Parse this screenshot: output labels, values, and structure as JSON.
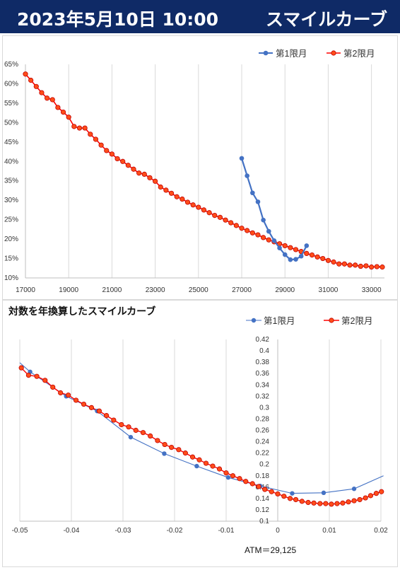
{
  "header": {
    "date": "2023年5月10日 10:00",
    "title": "スマイルカーブ"
  },
  "colors": {
    "header_bg": "#0f2a66",
    "series1": "#4472c4",
    "series2_line": "#ff0000",
    "series2_fill": "#ff4d1a"
  },
  "chart_data": [
    {
      "type": "line",
      "title": "",
      "legend": [
        "第1限月",
        "第2限月"
      ],
      "legend_position": "top-right",
      "xlim": [
        17000,
        33600
      ],
      "ylim": [
        0.1,
        0.65
      ],
      "x_ticks": [
        "17000",
        "19000",
        "21000",
        "23000",
        "25000",
        "27000",
        "29000",
        "31000",
        "33000"
      ],
      "y_ticks": [
        "10%",
        "15%",
        "20%",
        "25%",
        "30%",
        "35%",
        "40%",
        "45%",
        "50%",
        "55%",
        "60%",
        "65%"
      ],
      "grid": "vertical",
      "series": [
        {
          "name": "第1限月",
          "x": [
            27000,
            27250,
            27500,
            27750,
            28000,
            28250,
            28500,
            28750,
            29000,
            29250,
            29500,
            29750,
            30000
          ],
          "y": [
            0.408,
            0.363,
            0.319,
            0.296,
            0.249,
            0.22,
            0.196,
            0.177,
            0.16,
            0.147,
            0.148,
            0.156,
            0.183
          ]
        },
        {
          "name": "第2限月",
          "x": [
            17000,
            17250,
            17500,
            17750,
            18000,
            18250,
            18500,
            18750,
            19000,
            19250,
            19500,
            19750,
            20000,
            20250,
            20500,
            20750,
            21000,
            21250,
            21500,
            21750,
            22000,
            22250,
            22500,
            22750,
            23000,
            23250,
            23500,
            23750,
            24000,
            24250,
            24500,
            24750,
            25000,
            25250,
            25500,
            25750,
            26000,
            26250,
            26500,
            26750,
            27000,
            27250,
            27500,
            27750,
            28000,
            28250,
            28500,
            28750,
            29000,
            29250,
            29500,
            29750,
            30000,
            30250,
            30500,
            30750,
            31000,
            31250,
            31500,
            31750,
            32000,
            32250,
            32500,
            32750,
            33000,
            33250,
            33500
          ],
          "y": [
            0.625,
            0.609,
            0.593,
            0.577,
            0.563,
            0.559,
            0.539,
            0.527,
            0.514,
            0.49,
            0.486,
            0.486,
            0.47,
            0.457,
            0.442,
            0.428,
            0.419,
            0.407,
            0.4,
            0.39,
            0.38,
            0.37,
            0.367,
            0.358,
            0.349,
            0.334,
            0.326,
            0.318,
            0.309,
            0.303,
            0.295,
            0.288,
            0.282,
            0.275,
            0.268,
            0.261,
            0.256,
            0.249,
            0.242,
            0.235,
            0.228,
            0.222,
            0.216,
            0.211,
            0.204,
            0.198,
            0.193,
            0.188,
            0.183,
            0.178,
            0.173,
            0.168,
            0.163,
            0.159,
            0.154,
            0.15,
            0.145,
            0.141,
            0.136,
            0.136,
            0.133,
            0.133,
            0.13,
            0.131,
            0.128,
            0.129,
            0.128
          ]
        }
      ]
    },
    {
      "type": "line",
      "title": "対数を年換算したスマイルカーブ",
      "legend": [
        "第1限月",
        "第2限月"
      ],
      "legend_position": "top-right",
      "xlim": [
        -0.05,
        0.02
      ],
      "ylim": [
        0.1,
        0.42
      ],
      "x_ticks": [
        "-0.05",
        "-0.04",
        "-0.03",
        "-0.02",
        "-0.01",
        "0",
        "0.01",
        "0.02"
      ],
      "y_ticks": [
        "0.1",
        "0.12",
        "0.14",
        "0.16",
        "0.18",
        "0.2",
        "0.22",
        "0.24",
        "0.26",
        "0.28",
        "0.3",
        "0.32",
        "0.34",
        "0.36",
        "0.38",
        "0.4",
        "0.42"
      ],
      "grid": "vertical",
      "annotation": "ATM＝29,125",
      "series": [
        {
          "name": "第1限月",
          "x": [
            -0.0515,
            -0.048,
            -0.041,
            -0.035,
            -0.0285,
            -0.022,
            -0.0157,
            -0.0096,
            -0.0034,
            0.0028,
            0.0089,
            0.0148,
            0.0205
          ],
          "y": [
            0.379,
            0.363,
            0.32,
            0.294,
            0.248,
            0.219,
            0.197,
            0.177,
            0.162,
            0.149,
            0.15,
            0.157,
            0.18
          ]
        },
        {
          "name": "第2限月",
          "x": [
            -0.0497,
            -0.0483,
            -0.0467,
            -0.0451,
            -0.0436,
            -0.0421,
            -0.0406,
            -0.0391,
            -0.0376,
            -0.0361,
            -0.0346,
            -0.0332,
            -0.0318,
            -0.0303,
            -0.0289,
            -0.0275,
            -0.0261,
            -0.0247,
            -0.0233,
            -0.0219,
            -0.0206,
            -0.0192,
            -0.0179,
            -0.0165,
            -0.0152,
            -0.0139,
            -0.0126,
            -0.0113,
            -0.01,
            -0.0087,
            -0.0074,
            -0.0062,
            -0.0049,
            -0.0037,
            -0.0025,
            -0.0012,
            0.0,
            0.0012,
            0.0024,
            0.0035,
            0.0047,
            0.0059,
            0.007,
            0.0082,
            0.0093,
            0.0104,
            0.0115,
            0.0126,
            0.0137,
            0.0148,
            0.0159,
            0.017,
            0.018,
            0.0191,
            0.0201
          ],
          "y": [
            0.37,
            0.357,
            0.355,
            0.348,
            0.336,
            0.326,
            0.322,
            0.313,
            0.306,
            0.3,
            0.294,
            0.286,
            0.278,
            0.27,
            0.266,
            0.26,
            0.256,
            0.25,
            0.242,
            0.235,
            0.23,
            0.226,
            0.22,
            0.213,
            0.208,
            0.202,
            0.197,
            0.192,
            0.185,
            0.18,
            0.175,
            0.17,
            0.166,
            0.161,
            0.156,
            0.152,
            0.148,
            0.144,
            0.14,
            0.138,
            0.135,
            0.133,
            0.132,
            0.131,
            0.131,
            0.13,
            0.131,
            0.132,
            0.134,
            0.136,
            0.138,
            0.141,
            0.145,
            0.149,
            0.152
          ]
        }
      ]
    }
  ]
}
